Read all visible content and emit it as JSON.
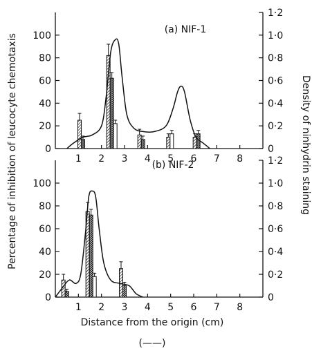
{
  "figure": {
    "left_axis_label": "Percentage of inhibition of leucocyte chemotaxis",
    "right_axis_label": "Density of ninhydrin staining",
    "x_axis_label": "Distance from the origin (cm)",
    "legend_line_symbol": "(——)"
  },
  "chart_data": [
    {
      "type": "bar",
      "title": "(a) NIF-1",
      "x_ticks": [
        "1",
        "2",
        "3",
        "4",
        "5",
        "6",
        "7",
        "8"
      ],
      "y_left_ticks": [
        "0",
        "20",
        "40",
        "60",
        "80",
        "100"
      ],
      "y_right_ticks": [
        "0",
        "0·2",
        "0·4",
        "0·6",
        "0·8",
        "1·0",
        "1·2"
      ],
      "xlim": [
        0,
        9
      ],
      "ylim_left": [
        0,
        120
      ],
      "ylim_right": [
        0,
        1.2
      ],
      "bar_groups": [
        {
          "x": 1.2,
          "bars": [
            {
              "pattern": "hatched",
              "value": 25,
              "error": 6
            },
            {
              "pattern": "cross",
              "value": 8,
              "error": 3
            },
            {
              "pattern": "open",
              "value": 0,
              "error": 0
            }
          ]
        },
        {
          "x": 2.45,
          "bars": [
            {
              "pattern": "hatched",
              "value": 82,
              "error": 10
            },
            {
              "pattern": "cross",
              "value": 62,
              "error": 5
            },
            {
              "pattern": "open",
              "value": 22,
              "error": 3
            }
          ]
        },
        {
          "x": 3.8,
          "bars": [
            {
              "pattern": "hatched",
              "value": 12,
              "error": 5
            },
            {
              "pattern": "cross",
              "value": 8,
              "error": 3
            },
            {
              "pattern": "open",
              "value": 0,
              "error": 0
            }
          ]
        },
        {
          "x": 5.05,
          "bars": [
            {
              "pattern": "hatched",
              "value": 10,
              "error": 3
            },
            {
              "pattern": "open",
              "value": 13,
              "error": 3
            },
            {
              "pattern": "open",
              "value": 0,
              "error": 0
            }
          ]
        },
        {
          "x": 6.2,
          "bars": [
            {
              "pattern": "hatched",
              "value": 10,
              "error": 3
            },
            {
              "pattern": "cross",
              "value": 13,
              "error": 3
            },
            {
              "pattern": "open",
              "value": 0,
              "error": 0
            }
          ]
        }
      ],
      "density_curve": {
        "x": [
          0.5,
          0.8,
          1.2,
          1.6,
          2.0,
          2.2,
          2.4,
          2.6,
          2.75,
          2.9,
          3.1,
          3.4,
          3.8,
          4.3,
          4.8,
          5.1,
          5.3,
          5.45,
          5.6,
          5.85,
          6.1,
          6.4,
          6.7
        ],
        "y": [
          0.0,
          0.05,
          0.1,
          0.12,
          0.2,
          0.45,
          0.85,
          0.96,
          0.92,
          0.62,
          0.3,
          0.18,
          0.15,
          0.15,
          0.2,
          0.35,
          0.5,
          0.55,
          0.5,
          0.25,
          0.1,
          0.05,
          0.0
        ]
      }
    },
    {
      "type": "bar",
      "title": "(b) NIF-2",
      "x_ticks": [
        "1",
        "2",
        "3",
        "4",
        "5",
        "6",
        "7",
        "8"
      ],
      "y_left_ticks": [
        "0",
        "20",
        "40",
        "60",
        "80",
        "100"
      ],
      "y_right_ticks": [
        "0",
        "0·2",
        "0·4",
        "0·6",
        "0·8",
        "1·0",
        "1·2"
      ],
      "xlim": [
        0,
        9
      ],
      "ylim_left": [
        0,
        120
      ],
      "ylim_right": [
        0,
        1.2
      ],
      "bar_groups": [
        {
          "x": 0.5,
          "bars": [
            {
              "pattern": "hatched",
              "value": 15,
              "error": 5
            },
            {
              "pattern": "cross",
              "value": 5,
              "error": 2
            },
            {
              "pattern": "open",
              "value": 0,
              "error": 0
            }
          ]
        },
        {
          "x": 1.55,
          "bars": [
            {
              "pattern": "hatched",
              "value": 75,
              "error": 8
            },
            {
              "pattern": "cross",
              "value": 72,
              "error": 5
            },
            {
              "pattern": "open",
              "value": 18,
              "error": 3
            }
          ]
        },
        {
          "x": 3.0,
          "bars": [
            {
              "pattern": "hatched",
              "value": 25,
              "error": 6
            },
            {
              "pattern": "cross",
              "value": 10,
              "error": 3
            },
            {
              "pattern": "open",
              "value": 0,
              "error": 0
            }
          ]
        }
      ],
      "density_curve": {
        "x": [
          0.0,
          0.3,
          0.6,
          0.9,
          1.1,
          1.3,
          1.45,
          1.6,
          1.75,
          1.9,
          2.1,
          2.4,
          2.8,
          3.2,
          3.5,
          3.8
        ],
        "y": [
          0.0,
          0.08,
          0.15,
          0.12,
          0.2,
          0.55,
          0.88,
          0.93,
          0.88,
          0.6,
          0.3,
          0.15,
          0.12,
          0.1,
          0.03,
          0.0
        ]
      }
    }
  ]
}
